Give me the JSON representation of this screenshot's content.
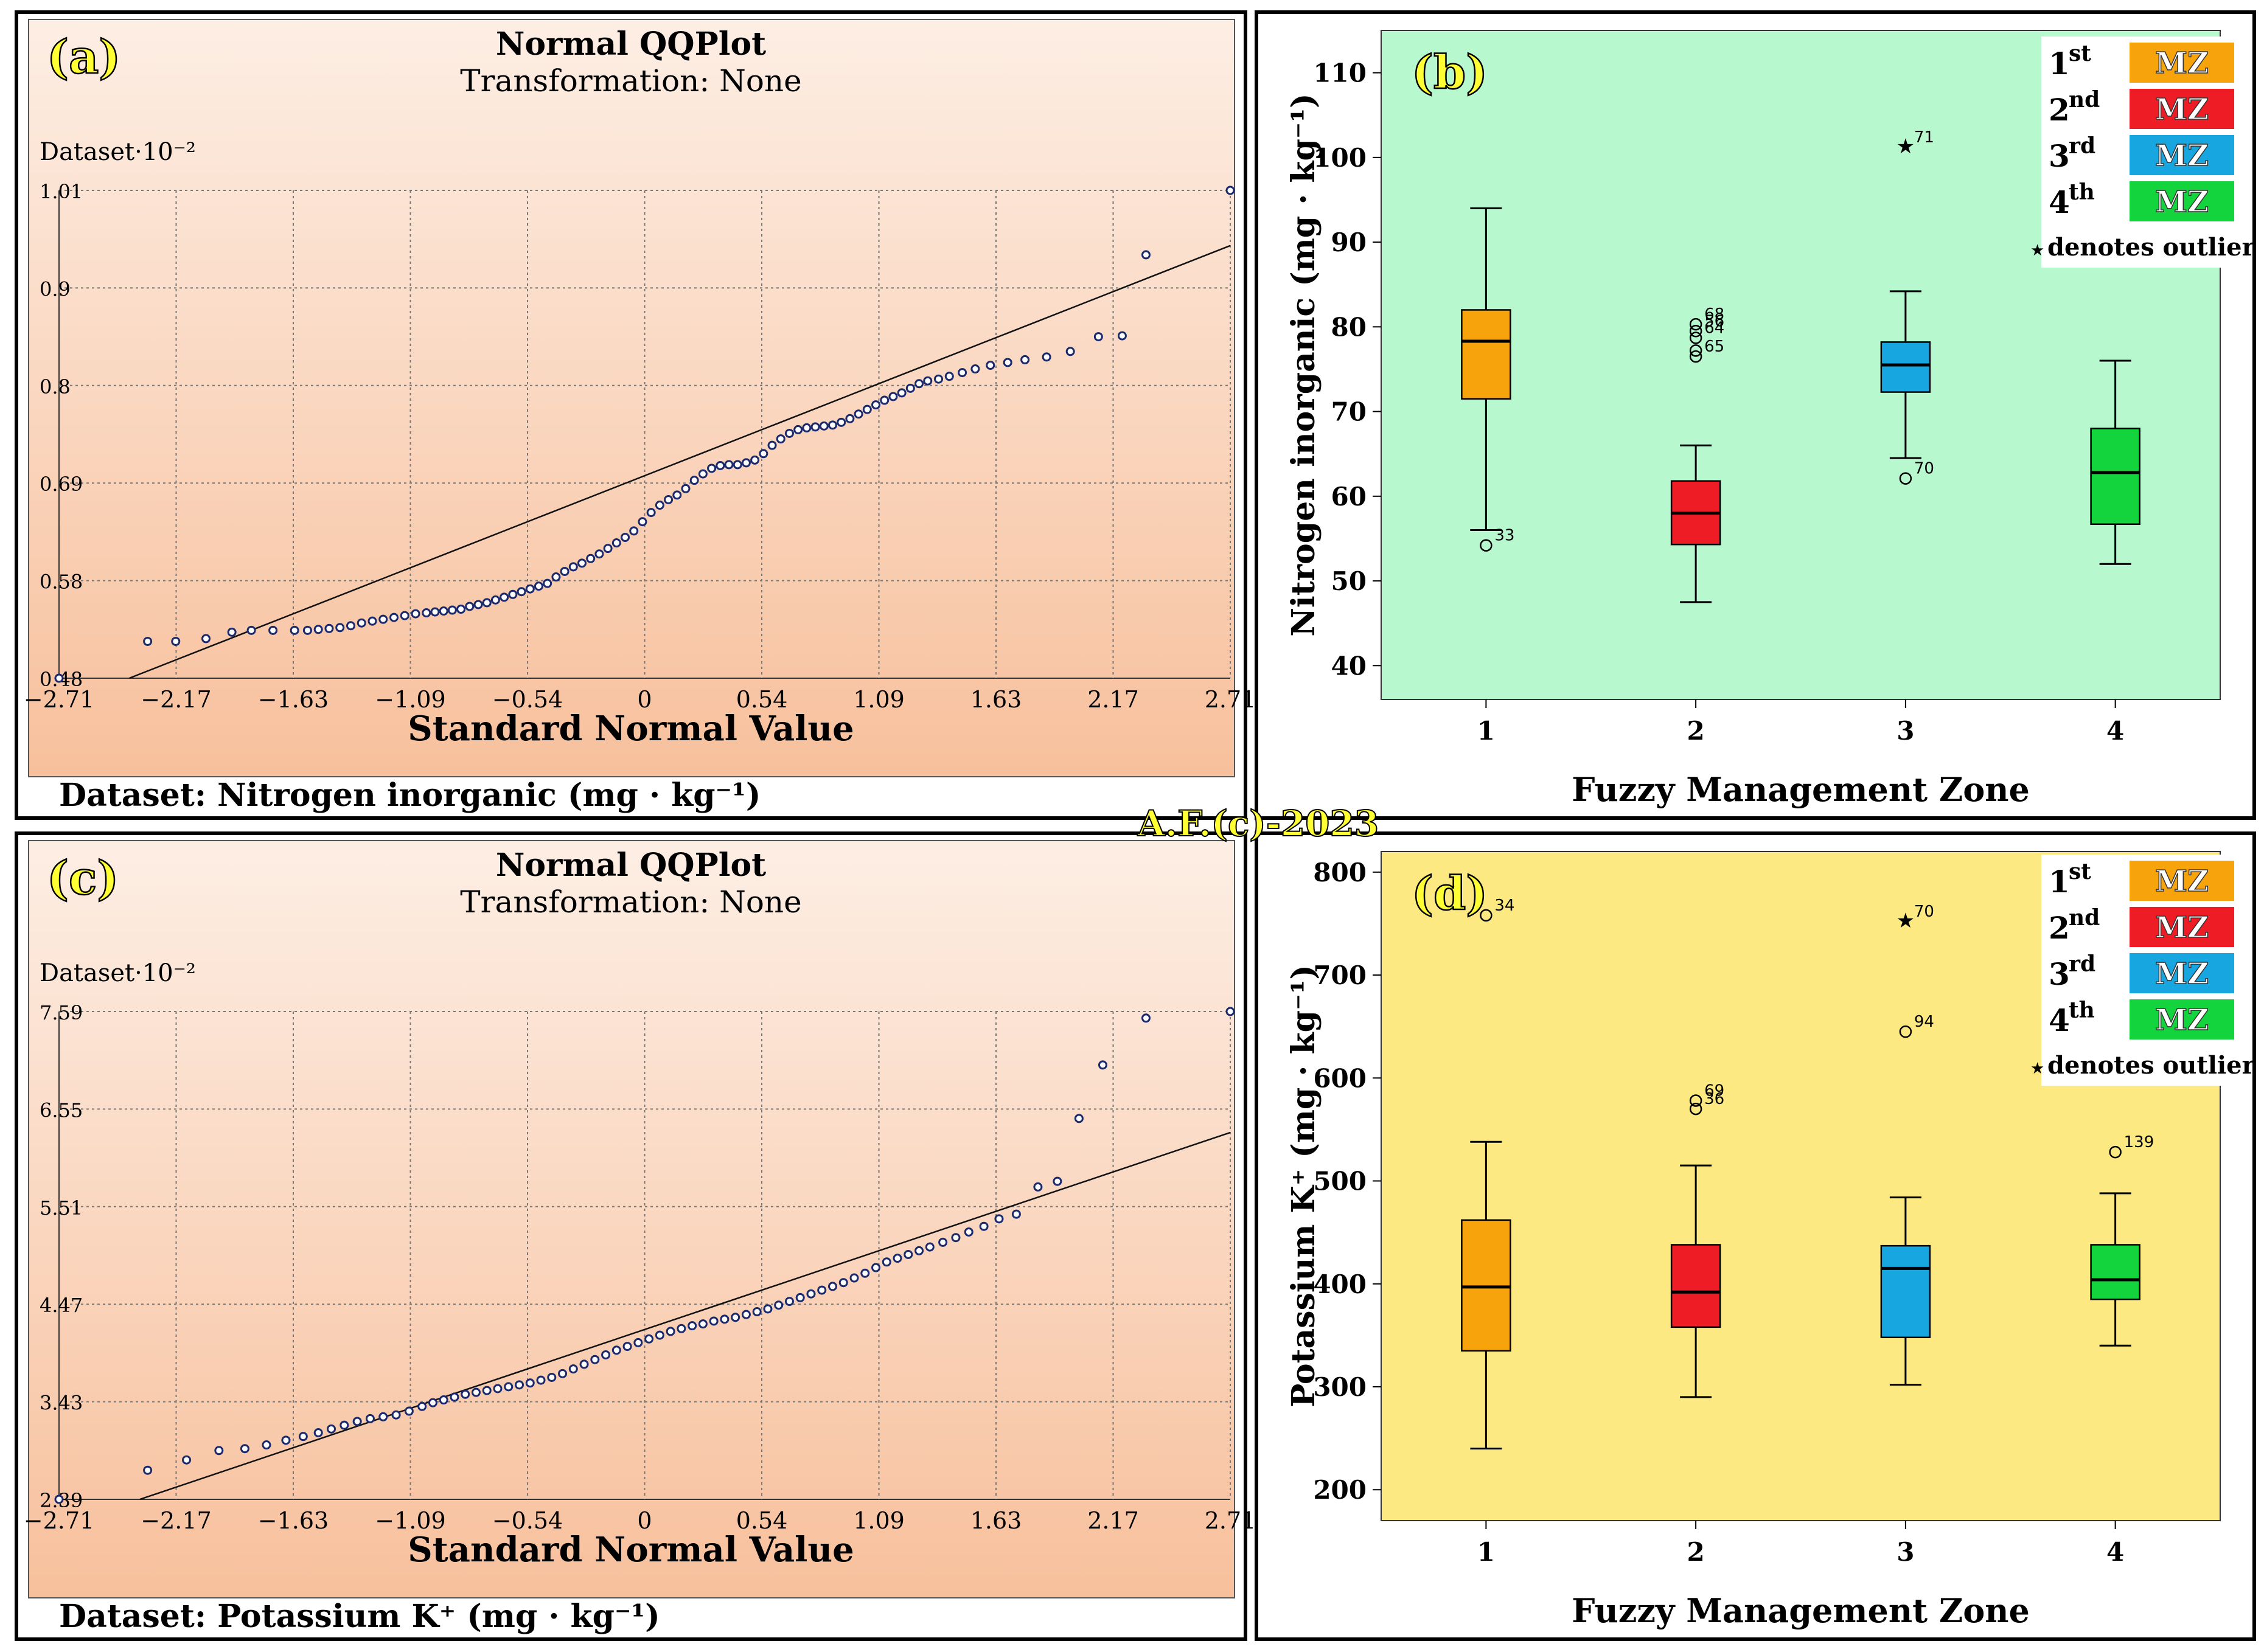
{
  "watermark": "A.F.(c)-2023",
  "legend": {
    "entries": [
      {
        "ordinal": "1",
        "suffix": "st",
        "tag": "MZ",
        "color": "#f7a30c"
      },
      {
        "ordinal": "2",
        "suffix": "nd",
        "tag": "MZ",
        "color": "#ee1c24"
      },
      {
        "ordinal": "3",
        "suffix": "rd",
        "tag": "MZ",
        "color": "#18a6e0"
      },
      {
        "ordinal": "4",
        "suffix": "th",
        "tag": "MZ",
        "color": "#13d43c"
      }
    ],
    "note_star": "★",
    "note": "denotes outlier"
  },
  "chart_data": [
    {
      "id": "a",
      "type": "scatter",
      "panel_label": "(a)",
      "title": "Normal QQPlot",
      "subtitle": "Transformation: None",
      "ylabel": "Dataset·10⁻²",
      "xlabel": "Standard  Normal  Value",
      "dataset": "Dataset: Nitrogen inorganic (mg · kg⁻¹)",
      "x_ticks": [
        "-2.71",
        "-2.17",
        "-1.63",
        "-1.09",
        "-0.54",
        "0",
        "0.54",
        "1.09",
        "1.63",
        "2.17",
        "2.71"
      ],
      "y_ticks": [
        "0.48",
        "0.58",
        "0.69",
        "0.8",
        "0.9",
        "1.01"
      ],
      "xlim": [
        -2.71,
        2.71
      ],
      "ylim": [
        0.48,
        1.01
      ],
      "grid": true,
      "reference_line": {
        "x": [
          -2.71,
          2.71
        ],
        "y": [
          0.45,
          0.95
        ]
      },
      "points": [
        [
          -2.71,
          0.48
        ],
        [
          -2.3,
          0.52
        ],
        [
          -2.17,
          0.52
        ],
        [
          -2.03,
          0.523
        ],
        [
          -1.91,
          0.53
        ],
        [
          -1.82,
          0.532
        ],
        [
          -1.72,
          0.532
        ],
        [
          -1.62,
          0.532
        ],
        [
          -1.56,
          0.532
        ],
        [
          -1.51,
          0.533
        ],
        [
          -1.46,
          0.534
        ],
        [
          -1.41,
          0.535
        ],
        [
          -1.36,
          0.537
        ],
        [
          -1.31,
          0.54
        ],
        [
          -1.26,
          0.542
        ],
        [
          -1.21,
          0.544
        ],
        [
          -1.16,
          0.546
        ],
        [
          -1.11,
          0.548
        ],
        [
          -1.06,
          0.55
        ],
        [
          -1.01,
          0.551
        ],
        [
          -0.97,
          0.552
        ],
        [
          -0.93,
          0.553
        ],
        [
          -0.89,
          0.554
        ],
        [
          -0.85,
          0.555
        ],
        [
          -0.81,
          0.558
        ],
        [
          -0.77,
          0.56
        ],
        [
          -0.73,
          0.562
        ],
        [
          -0.69,
          0.565
        ],
        [
          -0.65,
          0.568
        ],
        [
          -0.61,
          0.571
        ],
        [
          -0.57,
          0.574
        ],
        [
          -0.53,
          0.577
        ],
        [
          -0.49,
          0.58
        ],
        [
          -0.45,
          0.583
        ],
        [
          -0.41,
          0.59
        ],
        [
          -0.37,
          0.596
        ],
        [
          -0.33,
          0.601
        ],
        [
          -0.29,
          0.605
        ],
        [
          -0.25,
          0.61
        ],
        [
          -0.21,
          0.615
        ],
        [
          -0.17,
          0.621
        ],
        [
          -0.13,
          0.627
        ],
        [
          -0.09,
          0.633
        ],
        [
          -0.05,
          0.64
        ],
        [
          -0.01,
          0.65
        ],
        [
          0.03,
          0.66
        ],
        [
          0.07,
          0.668
        ],
        [
          0.11,
          0.674
        ],
        [
          0.15,
          0.679
        ],
        [
          0.19,
          0.686
        ],
        [
          0.23,
          0.695
        ],
        [
          0.27,
          0.702
        ],
        [
          0.31,
          0.708
        ],
        [
          0.35,
          0.711
        ],
        [
          0.39,
          0.712
        ],
        [
          0.43,
          0.712
        ],
        [
          0.47,
          0.714
        ],
        [
          0.51,
          0.717
        ],
        [
          0.55,
          0.724
        ],
        [
          0.59,
          0.733
        ],
        [
          0.63,
          0.74
        ],
        [
          0.67,
          0.746
        ],
        [
          0.71,
          0.75
        ],
        [
          0.75,
          0.752
        ],
        [
          0.79,
          0.753
        ],
        [
          0.83,
          0.754
        ],
        [
          0.87,
          0.755
        ],
        [
          0.91,
          0.758
        ],
        [
          0.95,
          0.762
        ],
        [
          0.99,
          0.767
        ],
        [
          1.03,
          0.772
        ],
        [
          1.07,
          0.777
        ],
        [
          1.11,
          0.782
        ],
        [
          1.15,
          0.786
        ],
        [
          1.19,
          0.79
        ],
        [
          1.23,
          0.795
        ],
        [
          1.27,
          0.8
        ],
        [
          1.31,
          0.803
        ],
        [
          1.36,
          0.805
        ],
        [
          1.41,
          0.808
        ],
        [
          1.47,
          0.812
        ],
        [
          1.53,
          0.816
        ],
        [
          1.6,
          0.82
        ],
        [
          1.68,
          0.823
        ],
        [
          1.76,
          0.826
        ],
        [
          1.86,
          0.829
        ],
        [
          1.97,
          0.835
        ],
        [
          2.1,
          0.851
        ],
        [
          2.21,
          0.852
        ],
        [
          2.32,
          0.94
        ],
        [
          2.71,
          1.01
        ]
      ]
    },
    {
      "id": "b",
      "type": "box",
      "panel_label": "(b)",
      "ylabel": "Nitrogen inorganic (mg · kg⁻¹)",
      "xlabel": "Fuzzy Management Zone",
      "categories": [
        "1",
        "2",
        "3",
        "4"
      ],
      "y_ticks": [
        40,
        50,
        60,
        70,
        80,
        90,
        100,
        110
      ],
      "ylim": [
        36,
        115
      ],
      "boxes": [
        {
          "zone": "1",
          "min": 56,
          "q1": 71.5,
          "median": 78.3,
          "q3": 82,
          "max": 94,
          "color": "#f7a30c"
        },
        {
          "zone": "2",
          "min": 47.5,
          "q1": 54.3,
          "median": 58,
          "q3": 61.8,
          "max": 66,
          "color": "#ee1c24"
        },
        {
          "zone": "3",
          "min": 64.5,
          "q1": 72.3,
          "median": 75.5,
          "q3": 78.2,
          "max": 84.2,
          "color": "#18a6e0"
        },
        {
          "zone": "4",
          "min": 52,
          "q1": 56.7,
          "median": 62.8,
          "q3": 68,
          "max": 76,
          "color": "#13d43c"
        }
      ],
      "outliers": [
        {
          "zone": "1",
          "value": 54.2,
          "label": "33",
          "marker": "circle"
        },
        {
          "zone": "2",
          "value": 79.5,
          "label": "56",
          "marker": "circle"
        },
        {
          "zone": "2",
          "value": 80.3,
          "label": "68",
          "marker": "circle"
        },
        {
          "zone": "2",
          "value": 78.7,
          "label": "64",
          "marker": "circle"
        },
        {
          "zone": "2",
          "value": 77.2,
          "label": "",
          "marker": "circle"
        },
        {
          "zone": "2",
          "value": 76.5,
          "label": "65",
          "marker": "circle"
        },
        {
          "zone": "3",
          "value": 62.1,
          "label": "70",
          "marker": "circle"
        },
        {
          "zone": "3",
          "value": 101.2,
          "label": "71",
          "marker": "star"
        }
      ],
      "background": "#b8f8cf"
    },
    {
      "id": "c",
      "type": "scatter",
      "panel_label": "(c)",
      "title": "Normal QQPlot",
      "subtitle": "Transformation: None",
      "ylabel": "Dataset·10⁻²",
      "xlabel": "Standard  Normal  Value",
      "dataset": "Dataset: Potassium K⁺ (mg · kg⁻¹)",
      "x_ticks": [
        "-2.71",
        "-2.17",
        "-1.63",
        "-1.09",
        "-0.54",
        "0",
        "0.54",
        "1.09",
        "1.63",
        "2.17",
        "2.71"
      ],
      "y_ticks": [
        "2.39",
        "3.43",
        "4.47",
        "5.51",
        "6.55",
        "7.59"
      ],
      "xlim": [
        -2.71,
        2.71
      ],
      "ylim": [
        2.39,
        7.59
      ],
      "grid": true,
      "reference_line": {
        "x": [
          -2.71,
          2.71
        ],
        "y": [
          2.1,
          6.3
        ]
      },
      "points": [
        [
          -2.71,
          2.39
        ],
        [
          -2.3,
          2.7
        ],
        [
          -2.12,
          2.81
        ],
        [
          -1.97,
          2.91
        ],
        [
          -1.85,
          2.93
        ],
        [
          -1.75,
          2.97
        ],
        [
          -1.66,
          3.02
        ],
        [
          -1.58,
          3.06
        ],
        [
          -1.51,
          3.1
        ],
        [
          -1.45,
          3.14
        ],
        [
          -1.39,
          3.18
        ],
        [
          -1.33,
          3.22
        ],
        [
          -1.27,
          3.25
        ],
        [
          -1.21,
          3.27
        ],
        [
          -1.15,
          3.29
        ],
        [
          -1.09,
          3.33
        ],
        [
          -1.03,
          3.38
        ],
        [
          -0.98,
          3.42
        ],
        [
          -0.93,
          3.45
        ],
        [
          -0.88,
          3.48
        ],
        [
          -0.83,
          3.51
        ],
        [
          -0.78,
          3.53
        ],
        [
          -0.73,
          3.55
        ],
        [
          -0.68,
          3.57
        ],
        [
          -0.63,
          3.59
        ],
        [
          -0.58,
          3.61
        ],
        [
          -0.53,
          3.63
        ],
        [
          -0.48,
          3.66
        ],
        [
          -0.43,
          3.69
        ],
        [
          -0.38,
          3.73
        ],
        [
          -0.33,
          3.78
        ],
        [
          -0.28,
          3.83
        ],
        [
          -0.23,
          3.88
        ],
        [
          -0.18,
          3.93
        ],
        [
          -0.13,
          3.98
        ],
        [
          -0.08,
          4.02
        ],
        [
          -0.03,
          4.06
        ],
        [
          0.02,
          4.1
        ],
        [
          0.07,
          4.14
        ],
        [
          0.12,
          4.18
        ],
        [
          0.17,
          4.21
        ],
        [
          0.22,
          4.24
        ],
        [
          0.27,
          4.26
        ],
        [
          0.32,
          4.29
        ],
        [
          0.37,
          4.31
        ],
        [
          0.42,
          4.33
        ],
        [
          0.47,
          4.36
        ],
        [
          0.52,
          4.39
        ],
        [
          0.57,
          4.42
        ],
        [
          0.62,
          4.46
        ],
        [
          0.67,
          4.5
        ],
        [
          0.72,
          4.54
        ],
        [
          0.77,
          4.58
        ],
        [
          0.82,
          4.62
        ],
        [
          0.87,
          4.66
        ],
        [
          0.92,
          4.7
        ],
        [
          0.97,
          4.75
        ],
        [
          1.02,
          4.8
        ],
        [
          1.07,
          4.86
        ],
        [
          1.12,
          4.92
        ],
        [
          1.17,
          4.96
        ],
        [
          1.22,
          5.0
        ],
        [
          1.27,
          5.04
        ],
        [
          1.32,
          5.08
        ],
        [
          1.38,
          5.13
        ],
        [
          1.44,
          5.18
        ],
        [
          1.5,
          5.24
        ],
        [
          1.57,
          5.3
        ],
        [
          1.64,
          5.38
        ],
        [
          1.72,
          5.43
        ],
        [
          1.82,
          5.72
        ],
        [
          1.91,
          5.78
        ],
        [
          2.01,
          6.45
        ],
        [
          2.12,
          7.02
        ],
        [
          2.32,
          7.52
        ],
        [
          2.71,
          7.59
        ]
      ]
    },
    {
      "id": "d",
      "type": "box",
      "panel_label": "(d)",
      "ylabel": "Potassium K⁺ (mg · kg⁻¹)",
      "xlabel": "Fuzzy Management Zone",
      "categories": [
        "1",
        "2",
        "3",
        "4"
      ],
      "y_ticks": [
        200,
        300,
        400,
        500,
        600,
        700,
        800
      ],
      "ylim": [
        170,
        820
      ],
      "boxes": [
        {
          "zone": "1",
          "min": 240,
          "q1": 335,
          "median": 397,
          "q3": 462,
          "max": 538,
          "color": "#f7a30c"
        },
        {
          "zone": "2",
          "min": 290,
          "q1": 358,
          "median": 392,
          "q3": 438,
          "max": 515,
          "color": "#ee1c24"
        },
        {
          "zone": "3",
          "min": 302,
          "q1": 348,
          "median": 415,
          "q3": 437,
          "max": 484,
          "color": "#18a6e0"
        },
        {
          "zone": "4",
          "min": 340,
          "q1": 385,
          "median": 404,
          "q3": 438,
          "max": 488,
          "color": "#13d43c"
        }
      ],
      "outliers": [
        {
          "zone": "1",
          "value": 758,
          "label": "34",
          "marker": "circle"
        },
        {
          "zone": "2",
          "value": 578,
          "label": "69",
          "marker": "circle"
        },
        {
          "zone": "2",
          "value": 570,
          "label": "36",
          "marker": "circle"
        },
        {
          "zone": "3",
          "value": 645,
          "label": "94",
          "marker": "circle"
        },
        {
          "zone": "3",
          "value": 752,
          "label": "70",
          "marker": "star"
        },
        {
          "zone": "4",
          "value": 528,
          "label": "139",
          "marker": "circle"
        }
      ],
      "background": "#fde981"
    }
  ]
}
